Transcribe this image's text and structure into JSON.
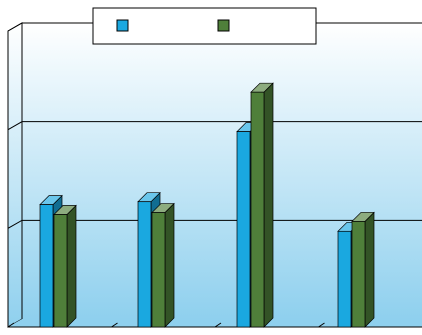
{
  "chart_data": {
    "type": "bar",
    "style": "3d-clustered-column",
    "categories": [
      "",
      "",
      "",
      ""
    ],
    "series": [
      {
        "values": [
          1.24,
          1.27,
          1.98,
          0.97
        ],
        "color": "#1aa8e0"
      },
      {
        "values": [
          1.14,
          1.16,
          2.38,
          1.07
        ],
        "color": "#4f7f3a"
      }
    ],
    "ylim": [
      0,
      3
    ],
    "grid": true,
    "legend": "top-center",
    "colors": {
      "floor_gradient_top": "#ffffff",
      "floor_gradient_bottom": "#8fd0ee",
      "axis": "#000000"
    }
  }
}
